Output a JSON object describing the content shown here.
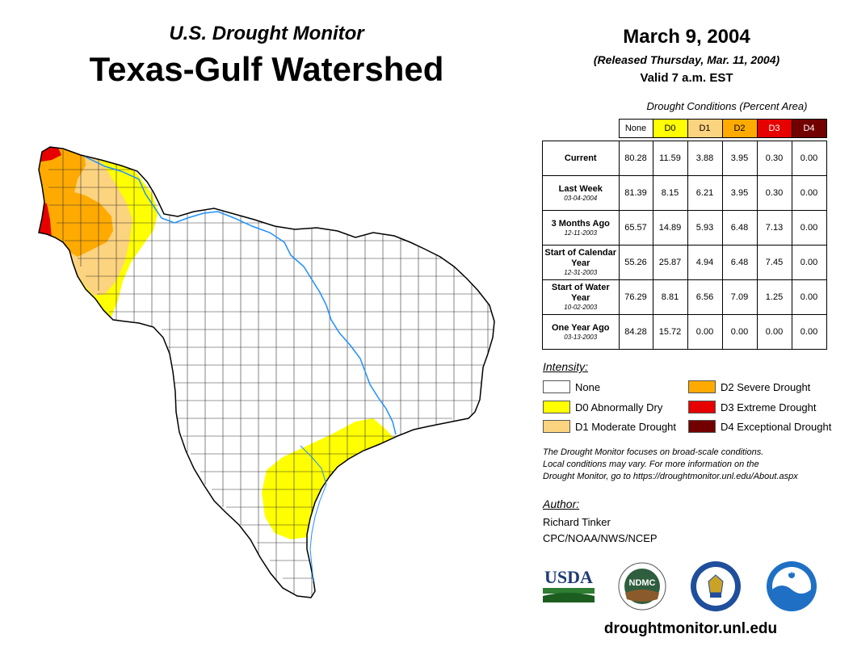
{
  "header": {
    "subtitle": "U.S. Drought Monitor",
    "title": "Texas-Gulf Watershed",
    "date": "March 9, 2004",
    "released": "(Released Thursday, Mar. 11, 2004)",
    "valid": "Valid 7 a.m. EST"
  },
  "table": {
    "caption": "Drought Conditions (Percent Area)",
    "columns": [
      "None",
      "D0",
      "D1",
      "D2",
      "D3",
      "D4"
    ],
    "column_colors": [
      "#ffffff",
      "#ffff00",
      "#fcd37f",
      "#ffaa00",
      "#e60000",
      "#730000"
    ],
    "rows": [
      {
        "label": "Current",
        "sub": "",
        "values": [
          "80.28",
          "11.59",
          "3.88",
          "3.95",
          "0.30",
          "0.00"
        ]
      },
      {
        "label": "Last Week",
        "sub": "03-04-2004",
        "values": [
          "81.39",
          "8.15",
          "6.21",
          "3.95",
          "0.30",
          "0.00"
        ]
      },
      {
        "label": "3 Months Ago",
        "sub": "12-11-2003",
        "values": [
          "65.57",
          "14.89",
          "5.93",
          "6.48",
          "7.13",
          "0.00"
        ]
      },
      {
        "label": "Start of Calendar Year",
        "sub": "12-31-2003",
        "values": [
          "55.26",
          "25.87",
          "4.94",
          "6.48",
          "7.45",
          "0.00"
        ]
      },
      {
        "label": "Start of Water Year",
        "sub": "10-02-2003",
        "values": [
          "76.29",
          "8.81",
          "6.56",
          "7.09",
          "1.25",
          "0.00"
        ]
      },
      {
        "label": "One Year Ago",
        "sub": "03-13-2003",
        "values": [
          "84.28",
          "15.72",
          "0.00",
          "0.00",
          "0.00",
          "0.00"
        ]
      }
    ]
  },
  "legend": {
    "heading": "Intensity:",
    "items": [
      {
        "label": "None",
        "color": "#ffffff"
      },
      {
        "label": "D0 Abnormally Dry",
        "color": "#ffff00"
      },
      {
        "label": "D1 Moderate Drought",
        "color": "#fcd37f"
      },
      {
        "label": "D2 Severe Drought",
        "color": "#ffaa00"
      },
      {
        "label": "D3 Extreme Drought",
        "color": "#e60000"
      },
      {
        "label": "D4 Exceptional Drought",
        "color": "#730000"
      }
    ]
  },
  "note": {
    "line1": "The Drought Monitor focuses on broad-scale conditions.",
    "line2": "Local conditions may vary. For more information on the",
    "line3": "Drought Monitor, go to https://droughtmonitor.unl.edu/About.aspx"
  },
  "author": {
    "heading": "Author:",
    "name": "Richard Tinker",
    "org": "CPC/NOAA/NWS/NCEP"
  },
  "logos": {
    "usda": "USDA",
    "ndmc": "NDMC",
    "noaa": "NOAA"
  },
  "footer": {
    "url": "droughtmonitor.unl.edu"
  }
}
